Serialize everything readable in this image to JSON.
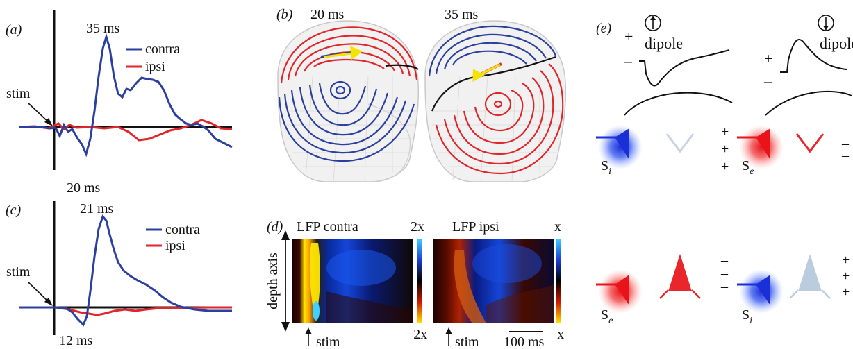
{
  "panels": {
    "a": {
      "label": "(a)",
      "peak_label": "35 ms",
      "trough_label": "20 ms",
      "stim_label": "stim",
      "legend": [
        {
          "name": "contra",
          "color": "#2b3f9e"
        },
        {
          "name": "ipsi",
          "color": "#e0262b"
        }
      ]
    },
    "b": {
      "label": "(b)",
      "left_time": "20 ms",
      "right_time": "35 ms"
    },
    "c": {
      "label": "(c)",
      "peak_label": "21 ms",
      "trough_label": "12 ms",
      "stim_label": "stim",
      "legend": [
        {
          "name": "contra",
          "color": "#2b3f9e"
        },
        {
          "name": "ipsi",
          "color": "#e0262b"
        }
      ]
    },
    "d": {
      "label": "(d)",
      "left_title": "LFP contra",
      "right_title": "LFP ipsi",
      "left_scale_top": "2x",
      "left_scale_bottom": "−2x",
      "right_scale_top": "x",
      "right_scale_bottom": "−x",
      "axis_label": "depth axis",
      "stim_left": "stim",
      "stim_right": "stim",
      "scale_bar": "100 ms"
    },
    "e": {
      "label": "(e)",
      "dipole_left": "dipole",
      "dipole_right": "dipole",
      "plus": "+",
      "minus": "–",
      "neuron_left_top_input": "S",
      "neuron_left_top_sub": "i",
      "neuron_left_bottom_input": "S",
      "neuron_left_bottom_sub": "e",
      "neuron_right_top_input": "S",
      "neuron_right_top_sub": "e",
      "neuron_right_bottom_input": "S",
      "neuron_right_bottom_sub": "i"
    }
  },
  "colors": {
    "contra": "#2b3f9e",
    "ipsi": "#e0262b",
    "black": "#111111",
    "arrow_yellow": "#f5e400"
  }
}
